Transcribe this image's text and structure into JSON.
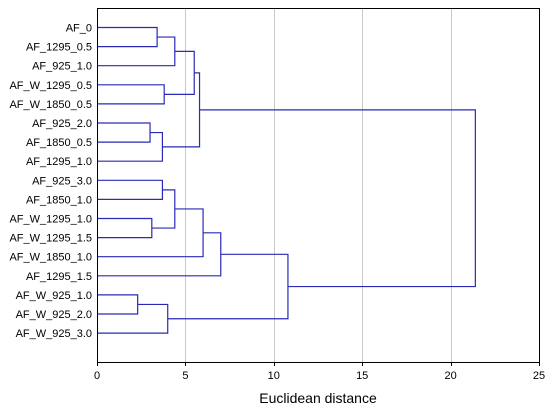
{
  "chart_data": {
    "type": "dendrogram",
    "title": "",
    "xlabel": "Euclidean distance",
    "ylabel": "",
    "xlim": [
      0,
      25
    ],
    "xticks": [
      "0",
      "5",
      "10",
      "15",
      "20",
      "25"
    ],
    "grid": "vertical",
    "colors": {
      "link": "#2a2ab5",
      "grid": "#c8c8c8",
      "frame": "#000000"
    },
    "leaves": [
      "AF_0",
      "AF_1295_0.5",
      "AF_925_1.0",
      "AF_W_1295_0.5",
      "AF_W_1850_0.5",
      "AF_925_2.0",
      "AF_1850_0.5",
      "AF_1295_1.0",
      "AF_925_3.0",
      "AF_1850_1.0",
      "AF_W_1295_1.0",
      "AF_W_1295_1.5",
      "AF_W_1850_1.0",
      "AF_1295_1.5",
      "AF_W_925_1.0",
      "AF_W_925_2.0",
      "AF_W_925_3.0"
    ],
    "merges": [
      {
        "left": "L0",
        "right": "L1",
        "height": 3.4
      },
      {
        "left": "M0",
        "right": "L2",
        "height": 4.4
      },
      {
        "left": "L3",
        "right": "L4",
        "height": 3.8
      },
      {
        "left": "M1",
        "right": "M2",
        "height": 5.5
      },
      {
        "left": "L5",
        "right": "L6",
        "height": 3.0
      },
      {
        "left": "M4",
        "right": "L7",
        "height": 3.7
      },
      {
        "left": "M3",
        "right": "M5",
        "height": 5.8
      },
      {
        "left": "L8",
        "right": "L9",
        "height": 3.7
      },
      {
        "left": "L10",
        "right": "L11",
        "height": 3.1
      },
      {
        "left": "M7",
        "right": "M8",
        "height": 4.4
      },
      {
        "left": "M9",
        "right": "L12",
        "height": 6.0
      },
      {
        "left": "M10",
        "right": "L13",
        "height": 7.0
      },
      {
        "left": "L14",
        "right": "L15",
        "height": 2.3
      },
      {
        "left": "M12",
        "right": "L16",
        "height": 4.0
      },
      {
        "left": "M11",
        "right": "M13",
        "height": 10.8
      },
      {
        "left": "M6",
        "right": "M14",
        "height": 21.4
      }
    ]
  }
}
